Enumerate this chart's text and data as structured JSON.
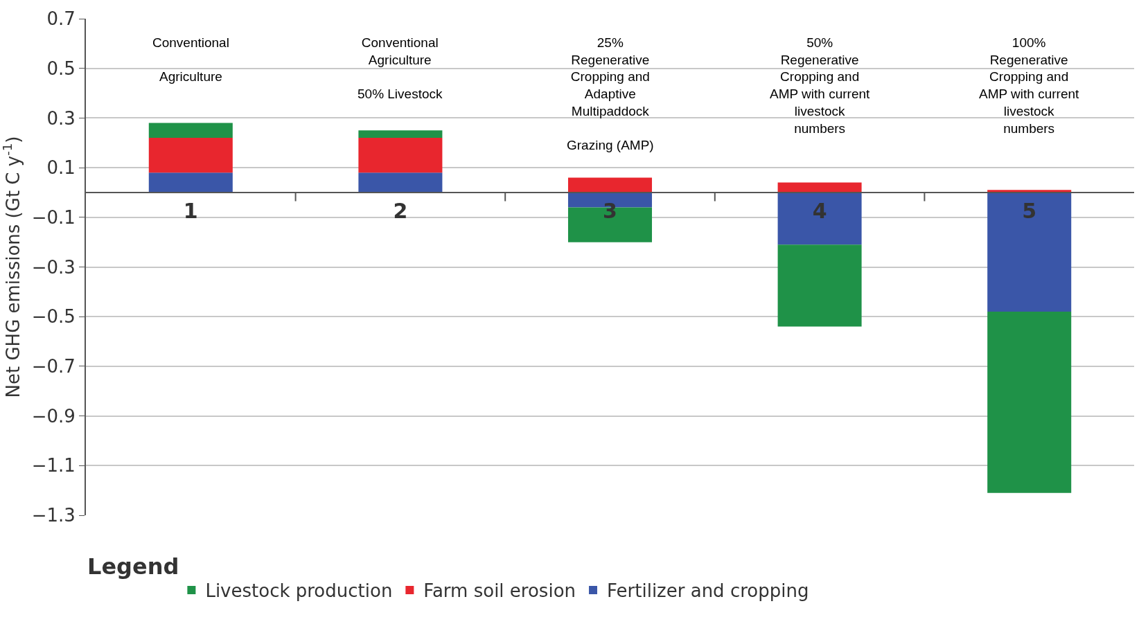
{
  "chart_data": {
    "type": "bar",
    "stacked": true,
    "ylabel": "Net GHG emissions (Gt C y$^{-1}$)",
    "legend_title": "Legend",
    "legend": "bottom",
    "grid": "y",
    "categories": [
      "1",
      "2",
      "3",
      "4",
      "5"
    ],
    "series": [
      {
        "name": "Fertilizer and cropping",
        "color": "#3a56a8",
        "values": [
          0.08,
          0.08,
          -0.06,
          -0.21,
          -0.48
        ]
      },
      {
        "name": "Farm soil erosion",
        "color": "#e8262e",
        "values": [
          0.14,
          0.14,
          0.06,
          0.04,
          0.01
        ]
      },
      {
        "name": "Livestock production",
        "color": "#1f9248",
        "values": [
          0.06,
          0.03,
          -0.14,
          -0.33,
          -0.73
        ]
      }
    ],
    "ylim": [
      -1.3,
      0.7
    ],
    "yticks": [
      0.7,
      0.5,
      0.3,
      0.1,
      -0.1,
      -0.3,
      -0.5,
      -0.7,
      -0.9,
      -1.1,
      -1.3
    ],
    "annotations": [
      "Conventional\n\nAgriculture",
      "Conventional\nAgriculture\n\n50% Livestock",
      "25%\nRegenerative\nCropping and\nAdaptive\nMultipaddock\n\nGrazing (AMP)",
      "50%\nRegenerative\nCropping and\nAMP with current\nlivestock\nnumbers",
      "100%\nRegenerative\nCropping and\nAMP with current\nlivestock\nnumbers"
    ]
  }
}
